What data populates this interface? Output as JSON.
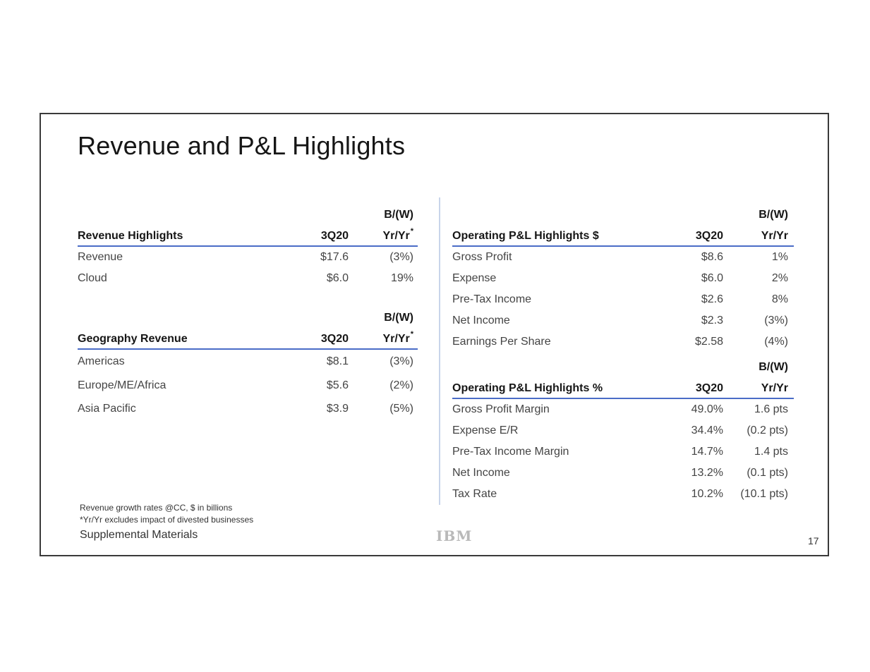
{
  "title": "Revenue and P&L Highlights",
  "revenue": {
    "header": "Revenue Highlights",
    "col1": "3Q20",
    "col2_top": "B/(W)",
    "col2": "Yr/Yr",
    "col2_mark": "*",
    "rows": [
      {
        "label": "Revenue",
        "value": "$17.6",
        "change": "(3%)"
      },
      {
        "label": "Cloud",
        "value": "$6.0",
        "change": "19%"
      }
    ]
  },
  "geography": {
    "header": "Geography Revenue",
    "col1": "3Q20",
    "col2_top": "B/(W)",
    "col2": "Yr/Yr",
    "col2_mark": "*",
    "rows": [
      {
        "label": "Americas",
        "value": "$8.1",
        "change": "(3%)"
      },
      {
        "label": "Europe/ME/Africa",
        "value": "$5.6",
        "change": "(2%)"
      },
      {
        "label": "Asia Pacific",
        "value": "$3.9",
        "change": "(5%)"
      }
    ]
  },
  "pl_dollars": {
    "header": "Operating P&L Highlights $",
    "col1": "3Q20",
    "col2_top": "B/(W)",
    "col2": "Yr/Yr",
    "rows": [
      {
        "label": "Gross Profit",
        "value": "$8.6",
        "change": "1%"
      },
      {
        "label": "Expense",
        "value": "$6.0",
        "change": "2%"
      },
      {
        "label": "Pre-Tax Income",
        "value": "$2.6",
        "change": "8%"
      },
      {
        "label": "Net Income",
        "value": "$2.3",
        "change": "(3%)"
      },
      {
        "label": "Earnings Per Share",
        "value": "$2.58",
        "change": "(4%)"
      }
    ]
  },
  "pl_percent": {
    "header": "Operating P&L Highlights %",
    "col1": "3Q20",
    "col2_top": "B/(W)",
    "col2": "Yr/Yr",
    "rows": [
      {
        "label": "Gross Profit Margin",
        "value": "49.0%",
        "change": "1.6 pts"
      },
      {
        "label": "Expense E/R",
        "value": "34.4%",
        "change": "(0.2 pts)"
      },
      {
        "label": "Pre-Tax Income Margin",
        "value": "14.7%",
        "change": "1.4 pts"
      },
      {
        "label": "Net Income",
        "value": "13.2%",
        "change": "(0.1 pts)"
      },
      {
        "label": "Tax Rate",
        "value": "10.2%",
        "change": "(10.1 pts)"
      }
    ]
  },
  "footnotes": [
    "Revenue growth rates @CC, $ in billions",
    "*Yr/Yr excludes impact of divested businesses"
  ],
  "supplemental": "Supplemental Materials",
  "logo": "IBM",
  "page_number": "17",
  "colors": {
    "accent_line": "#4a6cc7",
    "divider": "#c8d4ea"
  }
}
